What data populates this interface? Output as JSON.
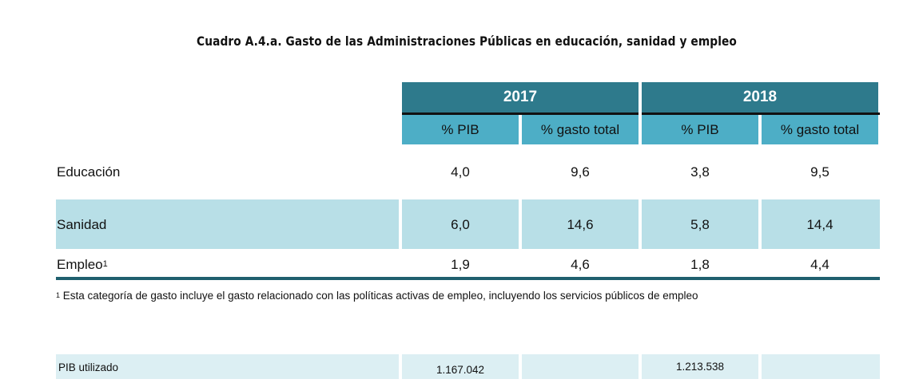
{
  "title": "Cuadro A.4.a. Gasto de las Administraciones Públicas en educación, sanidad y empleo",
  "years": [
    "2017",
    "2018"
  ],
  "subheaders": [
    "% PIB",
    "% gasto total",
    "% PIB",
    "% gasto total"
  ],
  "rows": [
    {
      "label": "Educación",
      "sup": "",
      "values": [
        "4,0",
        "9,6",
        "3,8",
        "9,5"
      ]
    },
    {
      "label": "Sanidad",
      "sup": "",
      "values": [
        "6,0",
        "14,6",
        "5,8",
        "14,4"
      ]
    },
    {
      "label": "Empleo",
      "sup": "1",
      "values": [
        "1,9",
        "4,6",
        "1,8",
        "4,4"
      ]
    }
  ],
  "footnote": {
    "marker": "1",
    "text": " Esta categoría de gasto incluye el gasto relacionado con las políticas activas de empleo, incluyendo los servicios públicos de empleo"
  },
  "pib": {
    "label": "PIB utilizado",
    "values": [
      "1.167.042",
      "",
      "1.213.538",
      ""
    ]
  },
  "colors": {
    "year_header": "#2e7a8c",
    "sub_header": "#4daec6",
    "highlight_row": "#b8dfe7",
    "pib_row": "#dceff3",
    "bottom_rule": "#1f5f6e"
  }
}
